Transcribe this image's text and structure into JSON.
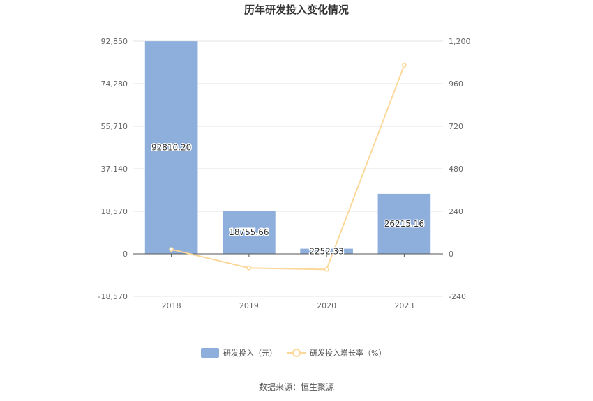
{
  "chart_data": {
    "type": "bar",
    "title": "历年研发投入变化情况",
    "categories": [
      "2018",
      "2019",
      "2020",
      "2023"
    ],
    "series": [
      {
        "name": "研发投入（元）",
        "type": "bar",
        "axis": "left",
        "color": "#8eaedc",
        "values": [
          92810.2,
          18755.66,
          2252.33,
          26215.16
        ],
        "labels": [
          "92810.20",
          "18755.66",
          "2252.33",
          "26215.16"
        ]
      },
      {
        "name": "研发投入增长率（%）",
        "type": "line",
        "axis": "right",
        "color": "#fbd89a",
        "values": [
          25,
          -79.8,
          -88,
          1064
        ]
      }
    ],
    "y_left": {
      "min": -18570,
      "max": 92850,
      "ticks": [
        92850,
        74280,
        55710,
        37140,
        18570,
        0,
        -18570
      ],
      "tick_labels": [
        "92,850",
        "74,280",
        "55,710",
        "37,140",
        "18,570",
        "0",
        "-18,570"
      ]
    },
    "y_right": {
      "min": -240,
      "max": 1200,
      "ticks": [
        1200,
        960,
        720,
        480,
        240,
        0,
        -240
      ],
      "tick_labels": [
        "1,200",
        "960",
        "720",
        "480",
        "240",
        "0",
        "-240"
      ]
    },
    "grid": true,
    "legend_position": "bottom",
    "source": "数据来源：恒生聚源"
  }
}
